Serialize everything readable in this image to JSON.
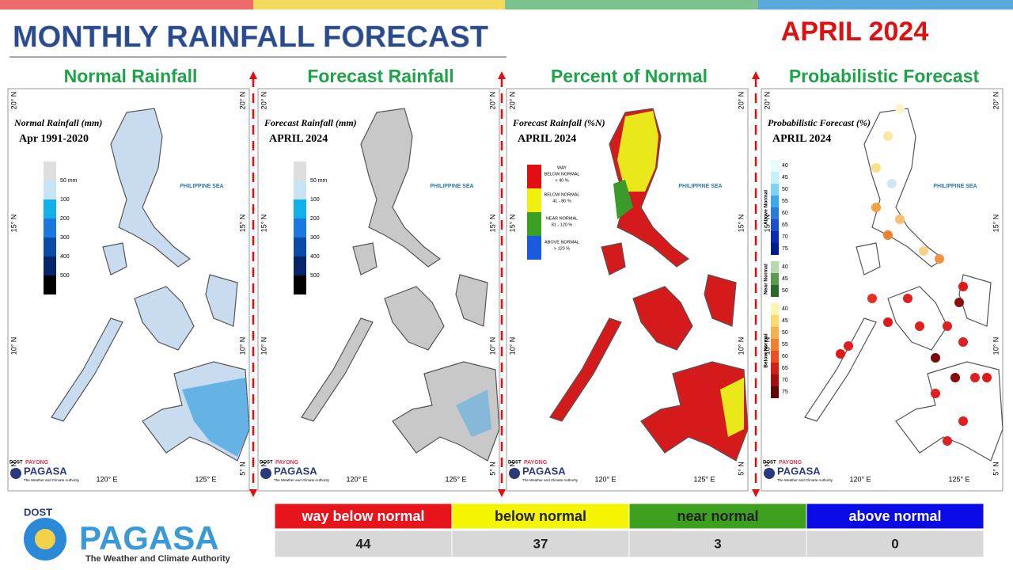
{
  "header": {
    "title": "MONTHLY RAINFALL FORECAST",
    "date": "APRIL 2024"
  },
  "panels": [
    {
      "title": "Normal Rainfall",
      "map_title": "Normal Rainfall (mm)",
      "map_subtitle": "Apr 1991-2020"
    },
    {
      "title": "Forecast Rainfall",
      "map_title": "Forecast Rainfall (mm)",
      "map_subtitle": "APRIL 2024"
    },
    {
      "title": "Percent of Normal",
      "map_title": "Forecast Rainfall (%N)",
      "map_subtitle": "APRIL 2024"
    },
    {
      "title": "Probabilistic Forecast",
      "map_title": "Probabilistic Forecast (%)",
      "map_subtitle": "APRIL 2024"
    }
  ],
  "rain_legend": [
    "50 mm",
    "100",
    "200",
    "300",
    "400",
    "500"
  ],
  "percent_legend": [
    [
      "WAY",
      "BELOW NORMAL",
      "< 40 %"
    ],
    [
      "BELOW NORMAL",
      "41 - 80 %"
    ],
    [
      "NEAR NORMAL",
      "81 - 120 %"
    ],
    [
      "ABOVE NORMAL",
      "> 120 %"
    ]
  ],
  "prob_legend": [
    {
      "name": "Above Normal",
      "ticks": [
        40,
        45,
        50,
        55,
        60,
        65,
        70,
        75
      ]
    },
    {
      "name": "Near Normal",
      "ticks": [
        40,
        45,
        50
      ]
    },
    {
      "name": "Below Normal",
      "ticks": [
        40,
        45,
        50,
        55,
        60,
        65,
        70,
        75
      ]
    }
  ],
  "map_labels": {
    "lat": [
      "20° N",
      "15° N",
      "10° N",
      "5° N"
    ],
    "lon": [
      "120° E",
      "125° E"
    ],
    "sea": "PHILIPPINE SEA"
  },
  "logo": {
    "dost": "DOST",
    "payong": "PAYONG",
    "pagasa": "PAGASA",
    "tagline": "The Weather and Climate Authority"
  },
  "summary": {
    "headers": [
      "way below normal",
      "below normal",
      "near normal",
      "above normal"
    ],
    "counts": [
      44,
      37,
      3,
      0
    ]
  }
}
